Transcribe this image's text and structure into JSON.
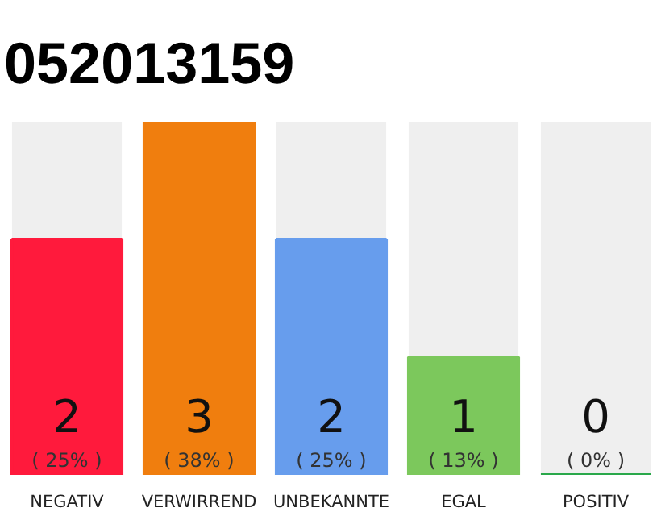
{
  "chart_data": {
    "type": "bar",
    "title": "052013159",
    "categories": [
      "NEGATIV",
      "VERWIRREND",
      "UNBEKANNTE",
      "EGAL",
      "POSITIV"
    ],
    "values": [
      2,
      3,
      2,
      1,
      0
    ],
    "colors": [
      "#ff1a3c",
      "#f07e0e",
      "#679ded",
      "#7cc85c",
      "#2aa84a"
    ],
    "ylim": [
      0,
      3
    ],
    "tick_labels": "x",
    "grid": false,
    "data_labels": true,
    "annotations": [
      "( 25% )",
      "( 38% )",
      "( 25% )",
      "( 13% )",
      "( 0% )"
    ]
  }
}
